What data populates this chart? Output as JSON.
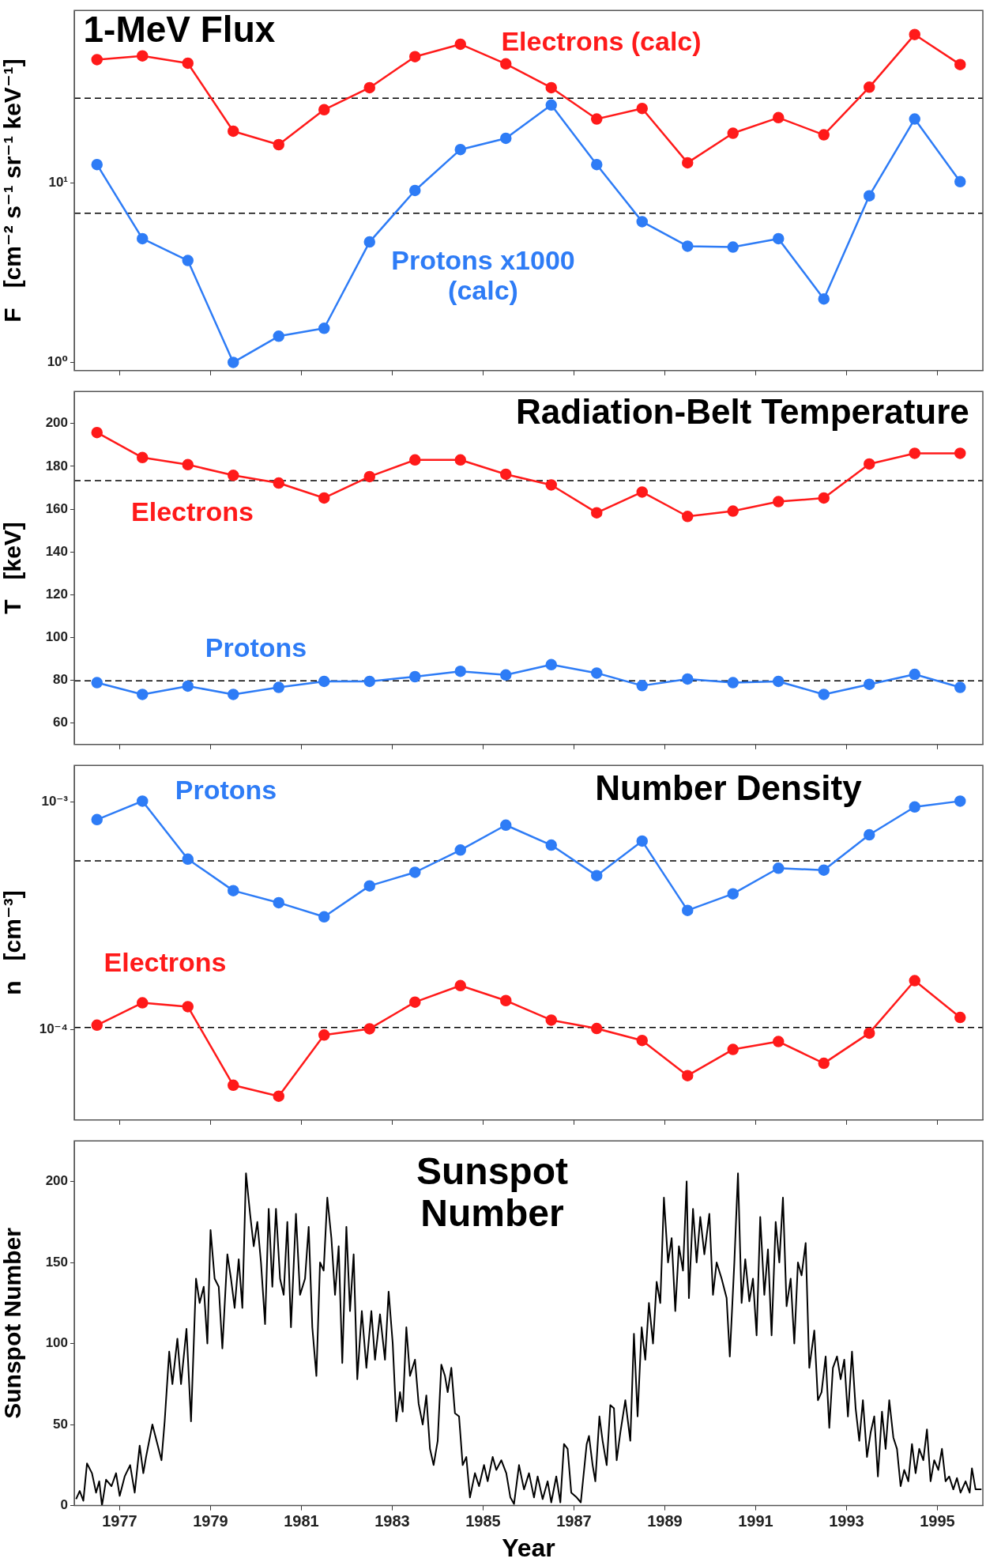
{
  "chart_data": [
    {
      "type": "line",
      "title": "1-MeV Flux",
      "ylabel": "F   [cm⁻² s⁻¹ sr⁻¹ keV⁻¹]",
      "log": "y",
      "grid": false,
      "legend": false,
      "marker": "circle",
      "line_style": "solid",
      "tick_labels": "y",
      "x": [
        1976.5,
        1977.5,
        1978.5,
        1979.5,
        1980.5,
        1981.5,
        1982.5,
        1983.5,
        1984.5,
        1985.5,
        1986.5,
        1987.5,
        1988.5,
        1989.5,
        1990.5,
        1991.5,
        1992.5,
        1993.5,
        1994.5,
        1995.5
      ],
      "xlim": [
        1976,
        1996
      ],
      "xticks": [
        1977,
        1979,
        1981,
        1983,
        1985,
        1987,
        1989,
        1991,
        1993,
        1995
      ],
      "ylim": [
        0.9,
        92
      ],
      "yticks": [
        {
          "value": 1,
          "label": "10⁰"
        },
        {
          "value": 10,
          "label": "10¹"
        }
      ],
      "series": [
        {
          "name": "Electrons (calc)",
          "color": "#ff1a1a",
          "values": [
            48.9,
            51.3,
            46.7,
            19.5,
            16.4,
            25.7,
            34.1,
            50.8,
            59.6,
            46.3,
            34.1,
            22.8,
            26.1,
            13.0,
            19.0,
            23.2,
            18.6,
            34.3,
            67.5,
            45.9
          ]
        },
        {
          "name": "Protons x1000 (calc)",
          "color": "#2e7cf6",
          "values": [
            12.7,
            4.9,
            3.7,
            1.0,
            1.4,
            1.55,
            4.7,
            9.1,
            15.4,
            17.8,
            27.3,
            12.7,
            6.1,
            4.45,
            4.4,
            4.9,
            2.26,
            8.5,
            22.8,
            10.2
          ]
        }
      ],
      "ref_lines": [
        {
          "axis": "y",
          "value": 29.8,
          "color": "#000000",
          "line_style": "dashed"
        },
        {
          "axis": "y",
          "value": 6.8,
          "color": "#000000",
          "line_style": "dashed"
        }
      ]
    },
    {
      "type": "line",
      "title": "Radiation-Belt Temperature",
      "ylabel": "T   [keV]",
      "grid": false,
      "legend": false,
      "marker": "circle",
      "line_style": "solid",
      "tick_labels": "y",
      "x": [
        1976.5,
        1977.5,
        1978.5,
        1979.5,
        1980.5,
        1981.5,
        1982.5,
        1983.5,
        1984.5,
        1985.5,
        1986.5,
        1987.5,
        1988.5,
        1989.5,
        1990.5,
        1991.5,
        1992.5,
        1993.5,
        1994.5,
        1995.5
      ],
      "xlim": [
        1976,
        1996
      ],
      "xticks": [
        1977,
        1979,
        1981,
        1983,
        1985,
        1987,
        1989,
        1991,
        1993,
        1995
      ],
      "ylim": [
        50,
        215
      ],
      "yticks": [
        60,
        80,
        100,
        120,
        140,
        160,
        180,
        200
      ],
      "series": [
        {
          "name": "Electrons",
          "color": "#ff1a1a",
          "values": [
            195.8,
            184.1,
            180.8,
            175.8,
            172.2,
            165.2,
            175.2,
            183.0,
            183.0,
            176.3,
            171.3,
            158.3,
            168.0,
            156.6,
            159.1,
            163.5,
            165.2,
            181.1,
            186.1,
            186.1
          ]
        },
        {
          "name": "Protons",
          "color": "#2e7cf6",
          "values": [
            78.9,
            73.4,
            77.3,
            73.4,
            76.7,
            79.5,
            79.5,
            81.7,
            84.2,
            82.5,
            87.3,
            83.4,
            77.5,
            80.6,
            78.9,
            79.5,
            73.4,
            78.1,
            82.8,
            76.7
          ]
        }
      ],
      "ref_lines": [
        {
          "axis": "y",
          "value": 173.3,
          "color": "#000000",
          "line_style": "dashed"
        },
        {
          "axis": "y",
          "value": 79.8,
          "color": "#000000",
          "line_style": "dashed"
        }
      ]
    },
    {
      "type": "line",
      "title": "Number Density",
      "ylabel": "n   [cm⁻³]",
      "log": "y",
      "grid": false,
      "legend": false,
      "marker": "circle",
      "line_style": "solid",
      "tick_labels": "y",
      "x": [
        1976.5,
        1977.5,
        1978.5,
        1979.5,
        1980.5,
        1981.5,
        1982.5,
        1983.5,
        1984.5,
        1985.5,
        1986.5,
        1987.5,
        1988.5,
        1989.5,
        1990.5,
        1991.5,
        1992.5,
        1993.5,
        1994.5,
        1995.5
      ],
      "xlim": [
        1976,
        1996
      ],
      "xticks": [
        1977,
        1979,
        1981,
        1983,
        1985,
        1987,
        1989,
        1991,
        1993,
        1995
      ],
      "ylim": [
        4e-05,
        0.00145
      ],
      "yticks": [
        {
          "value": 0.0001,
          "label": "10⁻⁴"
        },
        {
          "value": 0.001,
          "label": "10⁻³"
        }
      ],
      "series": [
        {
          "name": "Protons",
          "color": "#2e7cf6",
          "values": [
            0.000837,
            0.00101,
            0.000561,
            0.000408,
            0.000361,
            0.000313,
            0.000428,
            0.000491,
            0.000615,
            0.000792,
            0.000647,
            0.000475,
            0.000674,
            0.000334,
            0.000395,
            0.000512,
            0.000502,
            0.000718,
            0.000952,
            0.00101
          ]
        },
        {
          "name": "Electrons",
          "color": "#ff1a1a",
          "values": [
            0.0001045,
            0.000131,
            0.000126,
            5.69e-05,
            5.09e-05,
            9.46e-05,
            0.0001007,
            0.000132,
            0.000156,
            0.000134,
            0.00011,
            0.000101,
            8.95e-05,
            6.27e-05,
            8.17e-05,
            8.85e-05,
            7.1e-05,
            9.64e-05,
            0.000164,
            0.000113
          ]
        }
      ],
      "ref_lines": [
        {
          "axis": "y",
          "value": 0.000551,
          "color": "#000000",
          "line_style": "dashed"
        },
        {
          "axis": "y",
          "value": 0.000102,
          "color": "#000000",
          "line_style": "dashed"
        }
      ]
    },
    {
      "type": "line",
      "title": "Sunspot Number",
      "xlabel": "Year",
      "ylabel": "Sunspot Number",
      "grid": false,
      "legend": false,
      "marker": "none",
      "line_style": "solid",
      "xlim": [
        1976,
        1996
      ],
      "xticks": [
        1977,
        1979,
        1981,
        1983,
        1985,
        1987,
        1989,
        1991,
        1993,
        1995
      ],
      "ylim": [
        0,
        225
      ],
      "yticks": [
        0,
        50,
        100,
        150,
        200
      ],
      "series": [
        {
          "color": "#000000",
          "x": [
            1976.04,
            1976.12,
            1976.2,
            1976.28,
            1976.39,
            1976.48,
            1976.55,
            1976.61,
            1976.7,
            1976.82,
            1976.92,
            1977.0,
            1977.11,
            1977.23,
            1977.33,
            1977.44,
            1977.52,
            1977.58,
            1977.72,
            1977.83,
            1977.92,
            1977.99,
            1978.09,
            1978.16,
            1978.27,
            1978.35,
            1978.47,
            1978.57,
            1978.68,
            1978.76,
            1978.85,
            1978.93,
            1979.0,
            1979.09,
            1979.18,
            1979.26,
            1979.37,
            1979.45,
            1979.53,
            1979.62,
            1979.7,
            1979.78,
            1979.87,
            1979.95,
            1980.03,
            1980.11,
            1980.2,
            1980.28,
            1980.36,
            1980.44,
            1980.53,
            1980.61,
            1980.69,
            1980.77,
            1980.88,
            1980.97,
            1981.08,
            1981.16,
            1981.24,
            1981.33,
            1981.41,
            1981.49,
            1981.57,
            1981.66,
            1981.74,
            1981.82,
            1981.9,
            1981.99,
            1982.07,
            1982.15,
            1982.23,
            1982.33,
            1982.43,
            1982.54,
            1982.62,
            1982.73,
            1982.84,
            1982.92,
            1983.01,
            1983.09,
            1983.17,
            1983.23,
            1983.31,
            1983.39,
            1983.5,
            1983.58,
            1983.67,
            1983.75,
            1983.83,
            1983.91,
            1984.0,
            1984.08,
            1984.16,
            1984.22,
            1984.3,
            1984.38,
            1984.47,
            1984.55,
            1984.63,
            1984.71,
            1984.82,
            1984.91,
            1985.02,
            1985.1,
            1985.21,
            1985.29,
            1985.4,
            1985.51,
            1985.6,
            1985.68,
            1985.79,
            1985.9,
            1986.01,
            1986.12,
            1986.2,
            1986.31,
            1986.42,
            1986.5,
            1986.61,
            1986.7,
            1986.78,
            1986.86,
            1986.94,
            1987.06,
            1987.15,
            1987.28,
            1987.33,
            1987.41,
            1987.47,
            1987.56,
            1987.63,
            1987.72,
            1987.8,
            1987.88,
            1987.94,
            1988.02,
            1988.13,
            1988.24,
            1988.32,
            1988.4,
            1988.49,
            1988.57,
            1988.65,
            1988.74,
            1988.82,
            1988.9,
            1988.98,
            1989.07,
            1989.15,
            1989.23,
            1989.31,
            1989.4,
            1989.48,
            1989.53,
            1989.62,
            1989.7,
            1989.78,
            1989.87,
            1989.98,
            1990.06,
            1990.14,
            1990.25,
            1990.36,
            1990.43,
            1990.53,
            1990.61,
            1990.69,
            1990.77,
            1990.86,
            1990.94,
            1991.02,
            1991.1,
            1991.19,
            1991.27,
            1991.35,
            1991.44,
            1991.52,
            1991.6,
            1991.68,
            1991.77,
            1991.85,
            1991.93,
            1992.01,
            1992.1,
            1992.18,
            1992.29,
            1992.37,
            1992.45,
            1992.54,
            1992.62,
            1992.7,
            1992.79,
            1992.87,
            1992.95,
            1993.03,
            1993.12,
            1993.2,
            1993.28,
            1993.36,
            1993.45,
            1993.53,
            1993.61,
            1993.69,
            1993.78,
            1993.86,
            1993.94,
            1994.03,
            1994.11,
            1994.19,
            1994.27,
            1994.36,
            1994.44,
            1994.52,
            1994.6,
            1994.69,
            1994.77,
            1994.85,
            1994.93,
            1995.02,
            1995.1,
            1995.18,
            1995.26,
            1995.35,
            1995.43,
            1995.51,
            1995.62,
            1995.71,
            1995.76,
            1995.84,
            1995.97
          ],
          "values": [
            4,
            9,
            3,
            26,
            20,
            8,
            15,
            0,
            16,
            12,
            20,
            6,
            18,
            25,
            8,
            37,
            20,
            30,
            50,
            38,
            28,
            52,
            95,
            75,
            103,
            75,
            109,
            52,
            140,
            125,
            135,
            100,
            170,
            140,
            135,
            97,
            155,
            140,
            122,
            152,
            122,
            205,
            180,
            160,
            175,
            150,
            112,
            183,
            135,
            183,
            140,
            130,
            175,
            110,
            180,
            130,
            140,
            172,
            110,
            80,
            150,
            145,
            190,
            165,
            130,
            160,
            88,
            172,
            120,
            155,
            78,
            120,
            85,
            120,
            90,
            118,
            90,
            132,
            100,
            52,
            70,
            58,
            110,
            80,
            90,
            63,
            50,
            68,
            35,
            25,
            40,
            87,
            80,
            70,
            85,
            57,
            55,
            25,
            30,
            5,
            20,
            12,
            25,
            15,
            30,
            22,
            28,
            20,
            5,
            1,
            25,
            10,
            20,
            5,
            18,
            4,
            15,
            2,
            18,
            2,
            38,
            35,
            8,
            5,
            2,
            38,
            43,
            25,
            15,
            55,
            40,
            25,
            62,
            60,
            28,
            45,
            65,
            40,
            106,
            55,
            110,
            90,
            125,
            100,
            138,
            125,
            190,
            150,
            165,
            120,
            160,
            145,
            200,
            128,
            183,
            150,
            178,
            155,
            180,
            130,
            150,
            140,
            128,
            92,
            150,
            205,
            125,
            152,
            126,
            140,
            105,
            178,
            130,
            158,
            105,
            175,
            150,
            190,
            123,
            140,
            100,
            150,
            142,
            162,
            85,
            108,
            65,
            70,
            92,
            48,
            85,
            92,
            78,
            90,
            55,
            95,
            60,
            40,
            65,
            30,
            45,
            55,
            18,
            58,
            35,
            65,
            42,
            35,
            12,
            22,
            15,
            38,
            20,
            35,
            28,
            47,
            15,
            28,
            22,
            35,
            15,
            18,
            10,
            17,
            8,
            15,
            8,
            23,
            10,
            10
          ]
        }
      ]
    }
  ]
}
